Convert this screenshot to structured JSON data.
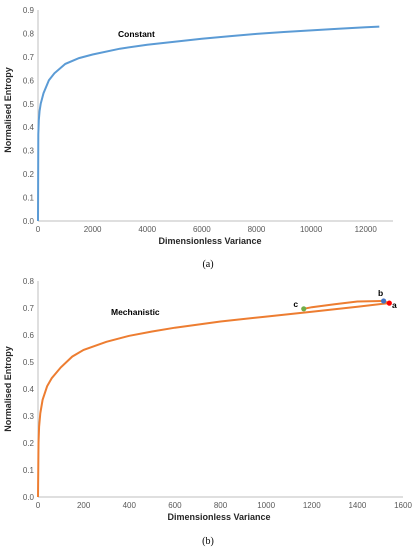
{
  "chart_data": [
    {
      "type": "line",
      "caption": "(a)",
      "annotation": "Constant",
      "xlabel": "Dimensionless Variance",
      "ylabel": "Normalised Entropy",
      "xlim": [
        0,
        13000
      ],
      "ylim": [
        0,
        0.9
      ],
      "xticks": [
        0,
        2000,
        4000,
        6000,
        8000,
        10000,
        12000
      ],
      "yticks": [
        0,
        0.1,
        0.2,
        0.3,
        0.4,
        0.5,
        0.6,
        0.7,
        0.8,
        0.9
      ],
      "grid": false,
      "series_color": "#5B9BD5",
      "x": [
        0,
        10,
        30,
        60,
        100,
        200,
        400,
        600,
        1000,
        1500,
        2000,
        3000,
        4000,
        5000,
        6000,
        7000,
        8000,
        9000,
        10000,
        11000,
        12000,
        12500
      ],
      "y": [
        0.0,
        0.37,
        0.43,
        0.47,
        0.5,
        0.545,
        0.6,
        0.63,
        0.67,
        0.695,
        0.71,
        0.735,
        0.752,
        0.765,
        0.777,
        0.788,
        0.798,
        0.806,
        0.813,
        0.82,
        0.826,
        0.829
      ]
    },
    {
      "type": "line",
      "caption": "(b)",
      "annotation": "Mechanistic",
      "xlabel": "Dimensionless Variance",
      "ylabel": "Normalised Entropy",
      "xlim": [
        0,
        1600
      ],
      "ylim": [
        0,
        0.8
      ],
      "xticks": [
        0,
        200,
        400,
        600,
        800,
        1000,
        1200,
        1400,
        1600
      ],
      "yticks": [
        0,
        0.1,
        0.2,
        0.3,
        0.4,
        0.5,
        0.6,
        0.7,
        0.8
      ],
      "grid": false,
      "series_color": "#ED7D31",
      "x": [
        0,
        2,
        5,
        10,
        20,
        40,
        60,
        100,
        150,
        200,
        300,
        400,
        500,
        600,
        800,
        1000,
        1200,
        1400,
        1540,
        1510,
        1400,
        1300,
        1200,
        1165
      ],
      "y": [
        0.0,
        0.2,
        0.26,
        0.31,
        0.36,
        0.41,
        0.44,
        0.48,
        0.52,
        0.545,
        0.575,
        0.597,
        0.613,
        0.627,
        0.65,
        0.668,
        0.686,
        0.705,
        0.718,
        0.726,
        0.724,
        0.714,
        0.703,
        0.697
      ],
      "points": [
        {
          "label": "a",
          "x": 1540,
          "y": 0.718,
          "color": "#FF0000"
        },
        {
          "label": "b",
          "x": 1515,
          "y": 0.726,
          "color": "#4472C4"
        },
        {
          "label": "c",
          "x": 1165,
          "y": 0.697,
          "color": "#70AD47"
        }
      ]
    }
  ]
}
